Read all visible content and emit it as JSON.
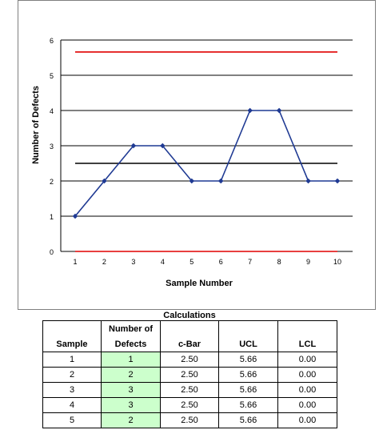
{
  "chart_data": {
    "type": "line",
    "xlabel": "Sample Number",
    "ylabel": "Number of Defects",
    "ylim": [
      0,
      6
    ],
    "yticks": [
      "0",
      "1",
      "2",
      "3",
      "4",
      "5",
      "6"
    ],
    "x": [
      "1",
      "2",
      "3",
      "4",
      "5",
      "6",
      "7",
      "8",
      "9",
      "10"
    ],
    "series": [
      {
        "values": [
          1,
          2,
          3,
          3,
          2,
          2,
          4,
          4,
          2,
          2
        ],
        "color": "#1f3a93"
      }
    ],
    "reference_lines": [
      {
        "value": 5.66,
        "color": "#e00000"
      },
      {
        "value": 2.5,
        "color": "#000000"
      },
      {
        "value": 0,
        "color": "#e00000"
      }
    ],
    "grid": true,
    "legend": "none"
  },
  "table": {
    "title": "Calculations",
    "header_row1": [
      "",
      "Number of",
      "",
      "",
      ""
    ],
    "header_row2": [
      "Sample",
      "Defects",
      "c-Bar",
      "UCL",
      "LCL"
    ],
    "rows": [
      [
        "1",
        "1",
        "2.50",
        "5.66",
        "0.00"
      ],
      [
        "2",
        "2",
        "2.50",
        "5.66",
        "0.00"
      ],
      [
        "3",
        "3",
        "2.50",
        "5.66",
        "0.00"
      ],
      [
        "4",
        "3",
        "2.50",
        "5.66",
        "0.00"
      ],
      [
        "5",
        "2",
        "2.50",
        "5.66",
        "0.00"
      ]
    ],
    "highlight_color": "#ccffcc"
  }
}
